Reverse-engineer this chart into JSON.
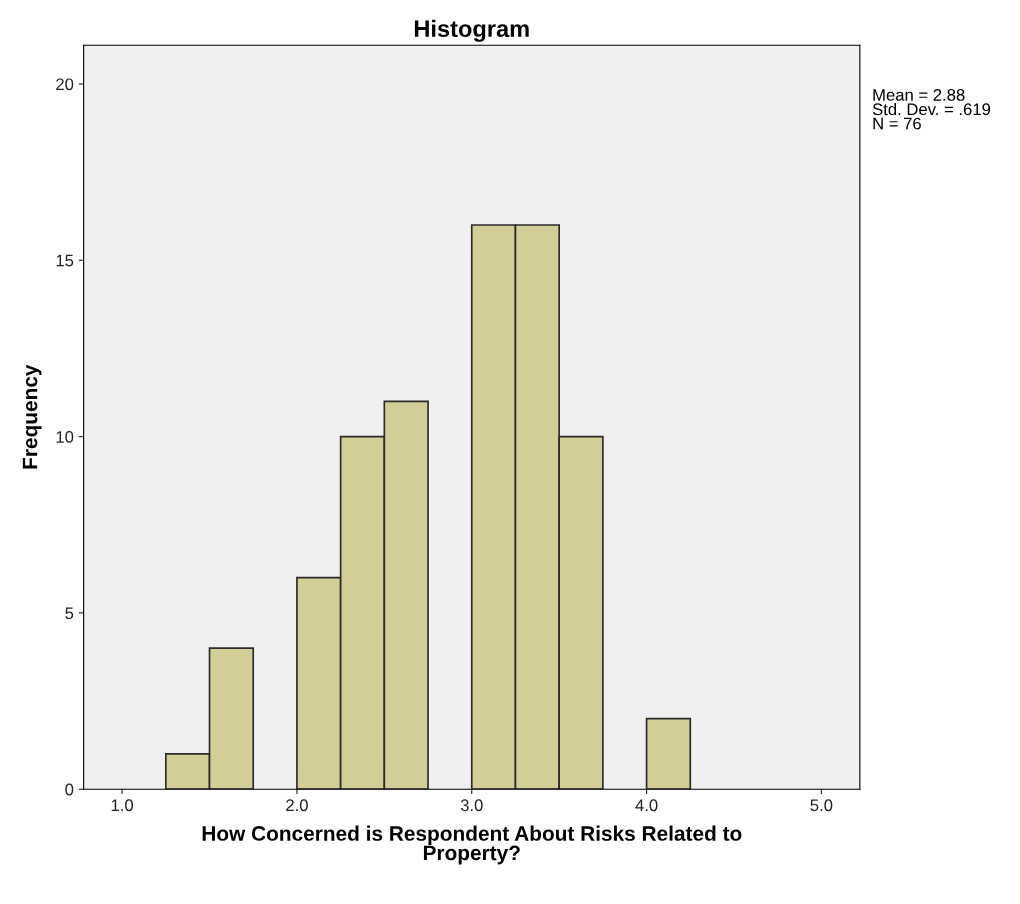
{
  "chart_data": {
    "type": "histogram",
    "title": "Histogram",
    "xlabel": "How Concerned is Respondent About Risks Related to\nProperty?",
    "ylabel": "Frequency",
    "bins": [
      1.25,
      1.5,
      1.75,
      2.0,
      2.25,
      2.5,
      2.75,
      3.0,
      3.25,
      3.5,
      3.75,
      4.0,
      4.25
    ],
    "values": [
      1,
      4,
      0,
      6,
      10,
      11,
      0,
      16,
      16,
      10,
      0,
      2
    ],
    "color": "#d3ce97",
    "xlim": [
      0.78,
      5.22
    ],
    "xticks": [
      {
        "value": 1,
        "label": "1.0"
      },
      {
        "value": 2,
        "label": "2.0"
      },
      {
        "value": 3,
        "label": "3.0"
      },
      {
        "value": 4,
        "label": "4.0"
      },
      {
        "value": 5,
        "label": "5.0"
      }
    ],
    "ylim": [
      0,
      21.1
    ],
    "yticks": [
      0,
      5,
      10,
      15,
      20
    ],
    "grid": false,
    "annotations": [
      "Mean = 2.88\nStd. Dev. = .619\nN = 76"
    ]
  }
}
